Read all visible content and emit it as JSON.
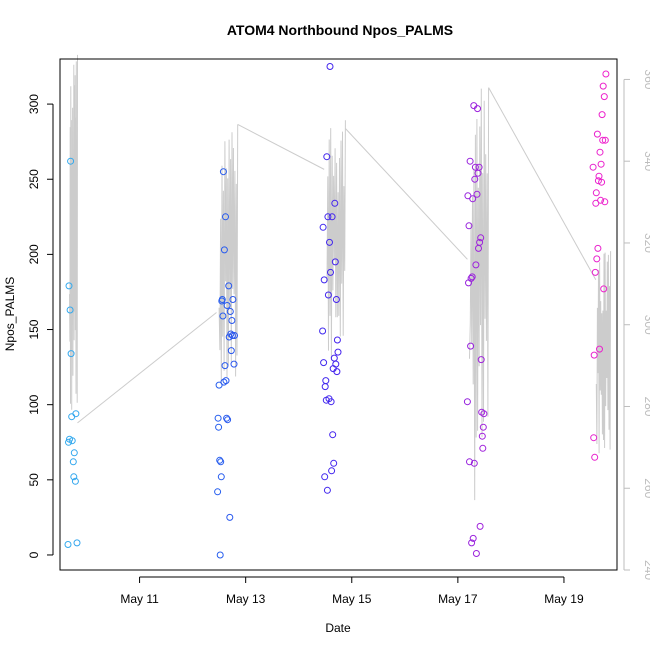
{
  "chart_data": {
    "type": "scatter",
    "title": "ATOM4 Northbound Npos_PALMS",
    "xlabel": "Date",
    "ylabel": "Npos_PALMS",
    "x_ticks": [
      {
        "label": "May 11",
        "value": 11
      },
      {
        "label": "May 13",
        "value": 13
      },
      {
        "label": "May 15",
        "value": 15
      },
      {
        "label": "May 17",
        "value": 17
      },
      {
        "label": "May 19",
        "value": 19
      }
    ],
    "xlim": [
      9.5,
      20.0
    ],
    "ylim": [
      -10,
      330
    ],
    "y_ticks": [
      0,
      50,
      100,
      150,
      200,
      250,
      300
    ],
    "y2lim": [
      240,
      365
    ],
    "y2_ticks": [
      240,
      260,
      280,
      300,
      320,
      340,
      360
    ],
    "grid": false,
    "legend": "none",
    "point_color_scale": [
      "#33aaee",
      "#2266ee",
      "#4422ee",
      "#9922dd",
      "#ee22cc"
    ],
    "line_color": "#cccccc",
    "points": [
      {
        "x": 9.65,
        "y": 7
      },
      {
        "x": 9.66,
        "y": 75
      },
      {
        "x": 9.67,
        "y": 179
      },
      {
        "x": 9.68,
        "y": 77
      },
      {
        "x": 9.69,
        "y": 163
      },
      {
        "x": 9.7,
        "y": 262
      },
      {
        "x": 9.71,
        "y": 134
      },
      {
        "x": 9.72,
        "y": 92
      },
      {
        "x": 9.73,
        "y": 76
      },
      {
        "x": 9.75,
        "y": 62
      },
      {
        "x": 9.76,
        "y": 52
      },
      {
        "x": 9.77,
        "y": 68
      },
      {
        "x": 9.79,
        "y": 49
      },
      {
        "x": 9.8,
        "y": 94
      },
      {
        "x": 9.82,
        "y": 8
      },
      {
        "x": 12.47,
        "y": 42
      },
      {
        "x": 12.48,
        "y": 91
      },
      {
        "x": 12.49,
        "y": 85
      },
      {
        "x": 12.5,
        "y": 113
      },
      {
        "x": 12.51,
        "y": 63
      },
      {
        "x": 12.52,
        "y": 0
      },
      {
        "x": 12.53,
        "y": 62
      },
      {
        "x": 12.54,
        "y": 52
      },
      {
        "x": 12.55,
        "y": 169
      },
      {
        "x": 12.56,
        "y": 170
      },
      {
        "x": 12.57,
        "y": 159
      },
      {
        "x": 12.58,
        "y": 255
      },
      {
        "x": 12.59,
        "y": 115
      },
      {
        "x": 12.6,
        "y": 203
      },
      {
        "x": 12.61,
        "y": 126
      },
      {
        "x": 12.62,
        "y": 225
      },
      {
        "x": 12.63,
        "y": 116
      },
      {
        "x": 12.64,
        "y": 91
      },
      {
        "x": 12.65,
        "y": 166
      },
      {
        "x": 12.66,
        "y": 90
      },
      {
        "x": 12.68,
        "y": 179
      },
      {
        "x": 12.69,
        "y": 145
      },
      {
        "x": 12.7,
        "y": 25
      },
      {
        "x": 12.71,
        "y": 162
      },
      {
        "x": 12.72,
        "y": 147
      },
      {
        "x": 12.73,
        "y": 136
      },
      {
        "x": 12.74,
        "y": 156
      },
      {
        "x": 12.75,
        "y": 146
      },
      {
        "x": 12.76,
        "y": 170
      },
      {
        "x": 12.78,
        "y": 127
      },
      {
        "x": 12.79,
        "y": 146
      },
      {
        "x": 14.45,
        "y": 149
      },
      {
        "x": 14.46,
        "y": 218
      },
      {
        "x": 14.47,
        "y": 128
      },
      {
        "x": 14.48,
        "y": 183
      },
      {
        "x": 14.49,
        "y": 52
      },
      {
        "x": 14.5,
        "y": 112
      },
      {
        "x": 14.51,
        "y": 116
      },
      {
        "x": 14.52,
        "y": 103
      },
      {
        "x": 14.53,
        "y": 265
      },
      {
        "x": 14.54,
        "y": 43
      },
      {
        "x": 14.55,
        "y": 225
      },
      {
        "x": 14.56,
        "y": 173
      },
      {
        "x": 14.57,
        "y": 104
      },
      {
        "x": 14.58,
        "y": 208
      },
      {
        "x": 14.59,
        "y": 325
      },
      {
        "x": 14.6,
        "y": 188
      },
      {
        "x": 14.61,
        "y": 102
      },
      {
        "x": 14.62,
        "y": 56
      },
      {
        "x": 14.63,
        "y": 225
      },
      {
        "x": 14.64,
        "y": 80
      },
      {
        "x": 14.65,
        "y": 124
      },
      {
        "x": 14.66,
        "y": 61
      },
      {
        "x": 14.67,
        "y": 131
      },
      {
        "x": 14.68,
        "y": 234
      },
      {
        "x": 14.69,
        "y": 195
      },
      {
        "x": 14.7,
        "y": 127
      },
      {
        "x": 14.71,
        "y": 170
      },
      {
        "x": 14.72,
        "y": 122
      },
      {
        "x": 14.73,
        "y": 143
      },
      {
        "x": 14.74,
        "y": 135
      },
      {
        "x": 17.18,
        "y": 102
      },
      {
        "x": 17.19,
        "y": 239
      },
      {
        "x": 17.2,
        "y": 181
      },
      {
        "x": 17.21,
        "y": 219
      },
      {
        "x": 17.22,
        "y": 62
      },
      {
        "x": 17.23,
        "y": 262
      },
      {
        "x": 17.24,
        "y": 139
      },
      {
        "x": 17.25,
        "y": 184
      },
      {
        "x": 17.26,
        "y": 8
      },
      {
        "x": 17.27,
        "y": 185
      },
      {
        "x": 17.28,
        "y": 237
      },
      {
        "x": 17.29,
        "y": 11
      },
      {
        "x": 17.3,
        "y": 299
      },
      {
        "x": 17.31,
        "y": 61
      },
      {
        "x": 17.32,
        "y": 250
      },
      {
        "x": 17.33,
        "y": 258
      },
      {
        "x": 17.34,
        "y": 193
      },
      {
        "x": 17.35,
        "y": 1
      },
      {
        "x": 17.36,
        "y": 240
      },
      {
        "x": 17.37,
        "y": 297
      },
      {
        "x": 17.38,
        "y": 254
      },
      {
        "x": 17.39,
        "y": 204
      },
      {
        "x": 17.4,
        "y": 258
      },
      {
        "x": 17.41,
        "y": 208
      },
      {
        "x": 17.42,
        "y": 19
      },
      {
        "x": 17.43,
        "y": 211
      },
      {
        "x": 17.44,
        "y": 130
      },
      {
        "x": 17.45,
        "y": 95
      },
      {
        "x": 17.46,
        "y": 79
      },
      {
        "x": 17.47,
        "y": 71
      },
      {
        "x": 17.48,
        "y": 85
      },
      {
        "x": 17.49,
        "y": 94
      },
      {
        "x": 19.55,
        "y": 258
      },
      {
        "x": 19.56,
        "y": 78
      },
      {
        "x": 19.57,
        "y": 133
      },
      {
        "x": 19.58,
        "y": 65
      },
      {
        "x": 19.59,
        "y": 188
      },
      {
        "x": 19.6,
        "y": 234
      },
      {
        "x": 19.61,
        "y": 241
      },
      {
        "x": 19.62,
        "y": 197
      },
      {
        "x": 19.63,
        "y": 280
      },
      {
        "x": 19.64,
        "y": 204
      },
      {
        "x": 19.65,
        "y": 249
      },
      {
        "x": 19.66,
        "y": 252
      },
      {
        "x": 19.67,
        "y": 137
      },
      {
        "x": 19.68,
        "y": 268
      },
      {
        "x": 19.69,
        "y": 236
      },
      {
        "x": 19.7,
        "y": 260
      },
      {
        "x": 19.71,
        "y": 248
      },
      {
        "x": 19.72,
        "y": 293
      },
      {
        "x": 19.73,
        "y": 276
      },
      {
        "x": 19.74,
        "y": 312
      },
      {
        "x": 19.75,
        "y": 177
      },
      {
        "x": 19.76,
        "y": 305
      },
      {
        "x": 19.77,
        "y": 235
      },
      {
        "x": 19.78,
        "y": 276
      },
      {
        "x": 19.79,
        "y": 320
      }
    ],
    "line_series": {
      "axis": "right",
      "clusters": [
        {
          "x_start": 9.68,
          "x_end": 9.83,
          "y_min": 276,
          "y_max": 366
        },
        {
          "x_start": 12.5,
          "x_end": 12.85,
          "y_min": 280,
          "y_max": 349
        },
        {
          "x_start": 14.52,
          "x_end": 14.88,
          "y_min": 290,
          "y_max": 350
        },
        {
          "x_start": 17.22,
          "x_end": 17.58,
          "y_min": 256,
          "y_max": 358
        },
        {
          "x_start": 19.61,
          "x_end": 19.88,
          "y_min": 268,
          "y_max": 318
        }
      ],
      "connectors": [
        [
          [
            9.83,
            276
          ],
          [
            12.45,
            303
          ]
        ],
        [
          [
            12.85,
            349
          ],
          [
            14.48,
            338
          ]
        ],
        [
          [
            14.88,
            348
          ],
          [
            17.18,
            316
          ]
        ],
        [
          [
            17.58,
            358
          ],
          [
            19.6,
            311
          ]
        ]
      ]
    }
  }
}
